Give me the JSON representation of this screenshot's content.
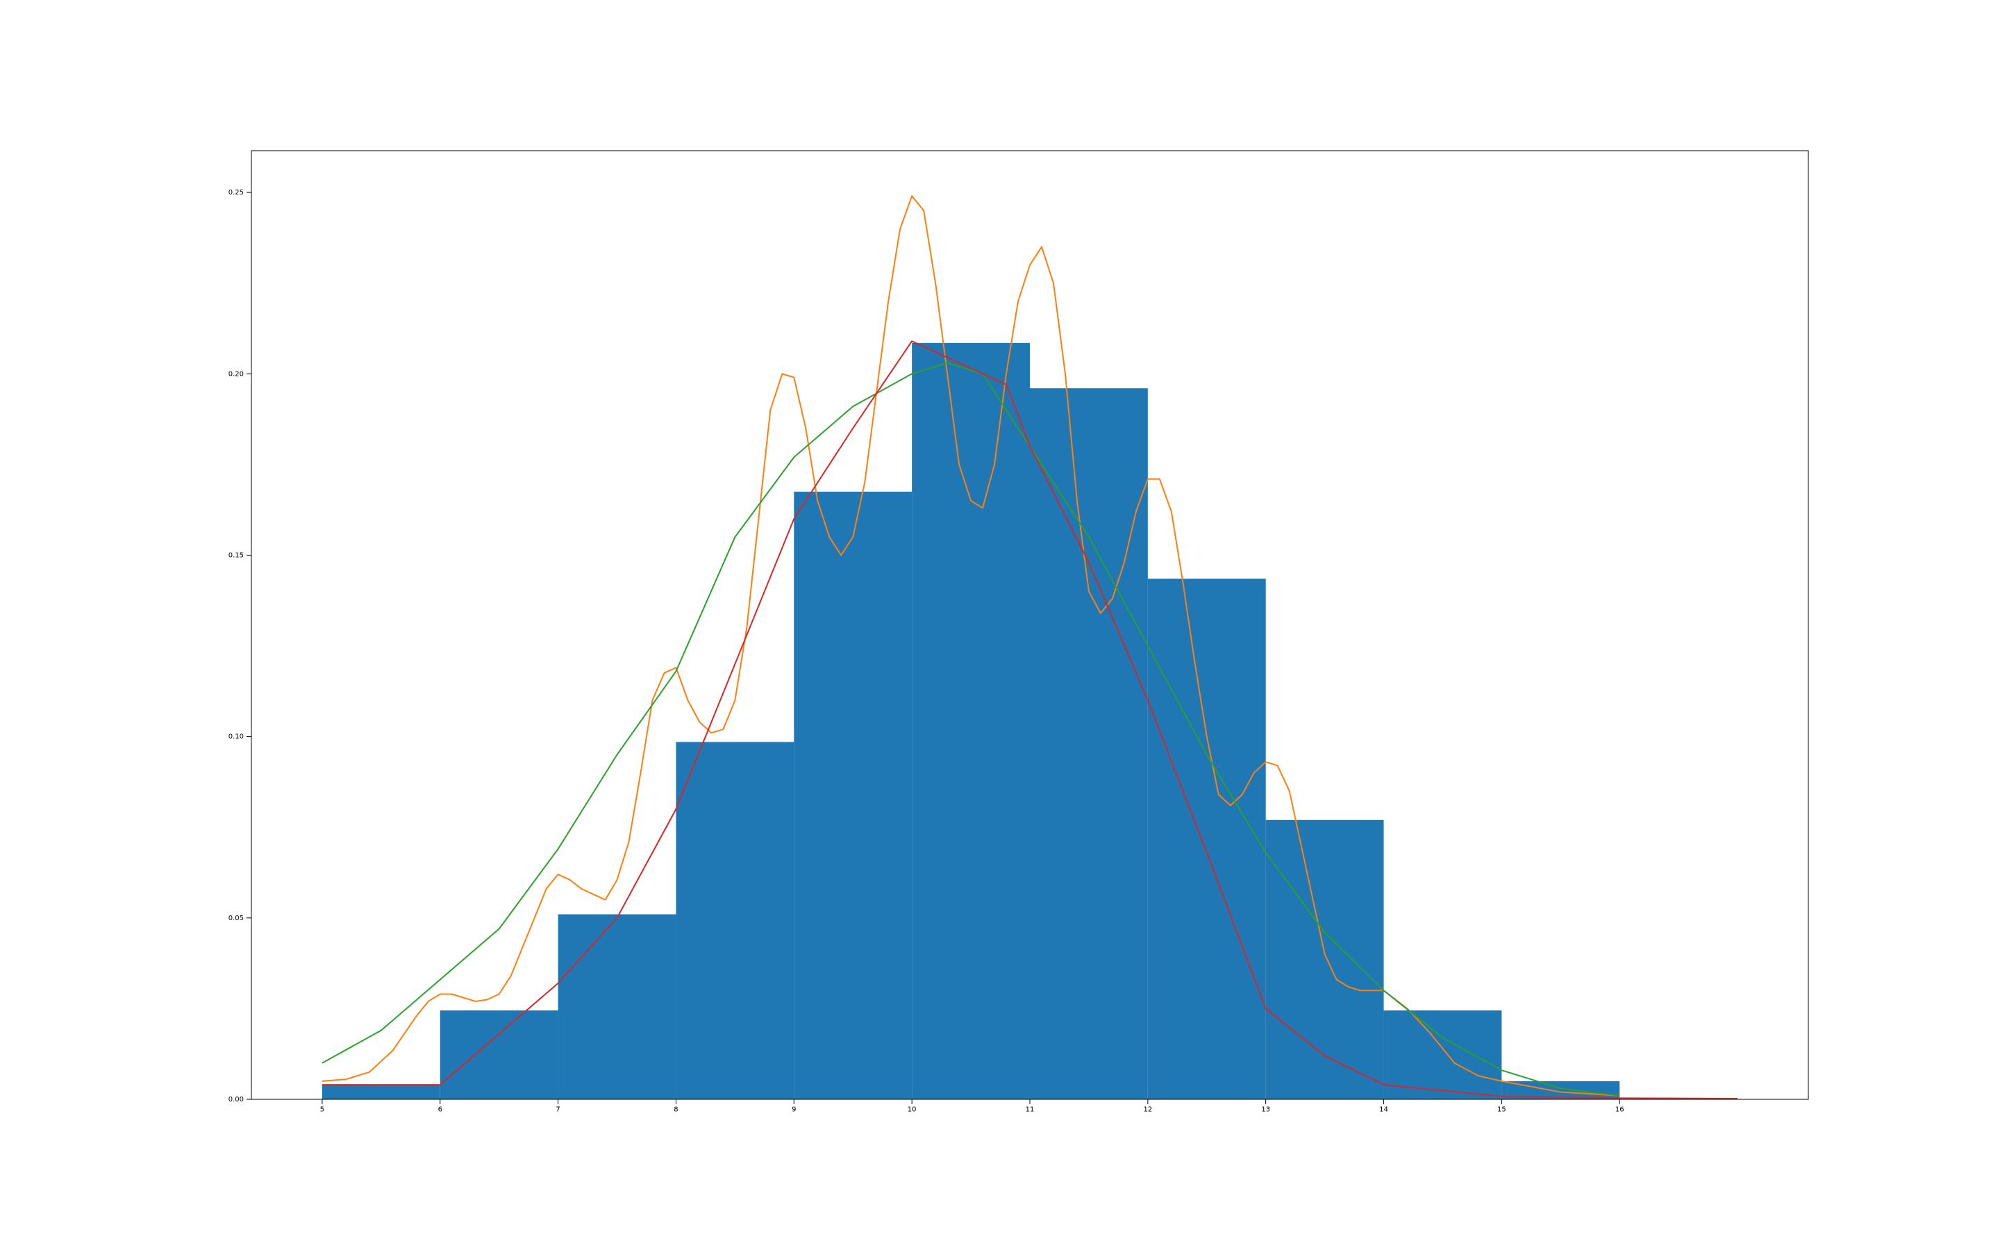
{
  "chart_data": {
    "type": "bar",
    "title": "",
    "xlabel": "",
    "ylabel": "",
    "xlim": [
      4.4,
      17.6
    ],
    "ylim": [
      0.0,
      0.2615
    ],
    "x_ticks": [
      5,
      6,
      7,
      8,
      9,
      10,
      11,
      12,
      13,
      14,
      15,
      16
    ],
    "x_tick_labels": [
      "5",
      "6",
      "7",
      "8",
      "9",
      "10",
      "11",
      "12",
      "13",
      "14",
      "15",
      "16"
    ],
    "y_ticks": [
      0.0,
      0.05,
      0.1,
      0.15,
      0.2,
      0.25
    ],
    "y_tick_labels": [
      "0.00",
      "0.05",
      "0.10",
      "0.15",
      "0.20",
      "0.25"
    ],
    "grid": false,
    "legend": "none",
    "histogram": {
      "color": "#1f77b4",
      "bin_edges": [
        5,
        6,
        7,
        8,
        9,
        10,
        11,
        12,
        13,
        14,
        15,
        16
      ],
      "values": [
        0.004,
        0.0245,
        0.051,
        0.0985,
        0.1675,
        0.2085,
        0.196,
        0.1435,
        0.077,
        0.0245,
        0.005
      ]
    },
    "series": [
      {
        "color": "#ff7f0e",
        "type": "line",
        "x": [
          5.0,
          5.2,
          5.4,
          5.6,
          5.8,
          5.9,
          6.0,
          6.1,
          6.3,
          6.4,
          6.5,
          6.6,
          6.8,
          6.9,
          7.0,
          7.1,
          7.2,
          7.4,
          7.5,
          7.6,
          7.7,
          7.8,
          7.9,
          8.0,
          8.1,
          8.2,
          8.3,
          8.4,
          8.5,
          8.6,
          8.7,
          8.8,
          8.9,
          9.0,
          9.1,
          9.2,
          9.3,
          9.4,
          9.5,
          9.6,
          9.7,
          9.8,
          9.9,
          10.0,
          10.1,
          10.2,
          10.3,
          10.4,
          10.5,
          10.6,
          10.7,
          10.8,
          10.9,
          11.0,
          11.1,
          11.2,
          11.3,
          11.4,
          11.5,
          11.6,
          11.7,
          11.8,
          11.9,
          12.0,
          12.1,
          12.2,
          12.3,
          12.4,
          12.5,
          12.6,
          12.7,
          12.8,
          12.9,
          13.0,
          13.1,
          13.2,
          13.3,
          13.4,
          13.5,
          13.6,
          13.7,
          13.8,
          13.9,
          14.0,
          14.2,
          14.4,
          14.6,
          14.8,
          15.0,
          15.5,
          16.0
        ],
        "y": [
          0.005,
          0.0055,
          0.0075,
          0.0135,
          0.023,
          0.027,
          0.029,
          0.029,
          0.027,
          0.0275,
          0.029,
          0.034,
          0.05,
          0.058,
          0.062,
          0.0605,
          0.058,
          0.055,
          0.0605,
          0.071,
          0.09,
          0.11,
          0.1175,
          0.119,
          0.11,
          0.104,
          0.101,
          0.102,
          0.11,
          0.13,
          0.16,
          0.19,
          0.2,
          0.199,
          0.185,
          0.165,
          0.155,
          0.15,
          0.155,
          0.17,
          0.195,
          0.22,
          0.24,
          0.249,
          0.245,
          0.225,
          0.2,
          0.175,
          0.165,
          0.163,
          0.175,
          0.2,
          0.22,
          0.23,
          0.235,
          0.225,
          0.2,
          0.165,
          0.14,
          0.134,
          0.138,
          0.148,
          0.162,
          0.171,
          0.171,
          0.162,
          0.142,
          0.12,
          0.1,
          0.084,
          0.081,
          0.084,
          0.09,
          0.093,
          0.092,
          0.085,
          0.07,
          0.055,
          0.04,
          0.033,
          0.031,
          0.03,
          0.03,
          0.03,
          0.025,
          0.018,
          0.01,
          0.0065,
          0.005,
          0.002,
          0.001
        ]
      },
      {
        "color": "#2ca02c",
        "type": "line",
        "x": [
          5.0,
          5.5,
          6.0,
          6.5,
          7.0,
          7.5,
          8.0,
          8.5,
          9.0,
          9.5,
          10.0,
          10.3,
          10.6,
          11.0,
          11.5,
          12.0,
          12.5,
          13.0,
          13.5,
          14.0,
          14.5,
          15.0,
          15.5,
          16.0
        ],
        "y": [
          0.01,
          0.019,
          0.033,
          0.047,
          0.069,
          0.095,
          0.118,
          0.155,
          0.177,
          0.191,
          0.2,
          0.203,
          0.2,
          0.18,
          0.155,
          0.125,
          0.095,
          0.068,
          0.046,
          0.03,
          0.017,
          0.008,
          0.003,
          0.001
        ]
      },
      {
        "color": "#d62728",
        "type": "line",
        "x": [
          5.0,
          6.0,
          7.0,
          7.5,
          8.0,
          8.5,
          9.0,
          9.5,
          10.0,
          10.4,
          10.8,
          11.0,
          11.5,
          12.0,
          12.5,
          13.0,
          13.5,
          14.0,
          15.0,
          16.0,
          17.0
        ],
        "y": [
          0.004,
          0.004,
          0.032,
          0.05,
          0.08,
          0.12,
          0.16,
          0.185,
          0.209,
          0.203,
          0.197,
          0.18,
          0.148,
          0.11,
          0.068,
          0.025,
          0.012,
          0.004,
          0.0008,
          0.0003,
          0.0002
        ]
      }
    ]
  }
}
